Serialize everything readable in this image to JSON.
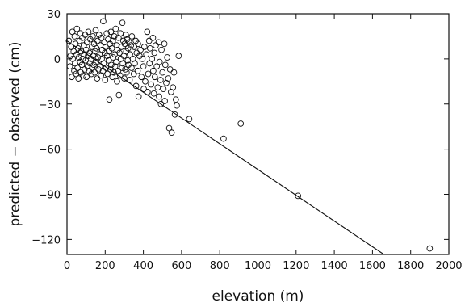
{
  "chart_data": {
    "type": "scatter",
    "title": "",
    "xlabel": "elevation (m)",
    "ylabel": "predicted − observed (cm)",
    "xlim": [
      0,
      2000
    ],
    "ylim": [
      -130,
      30
    ],
    "xticks": [
      0,
      200,
      400,
      600,
      800,
      1000,
      1200,
      1400,
      1600,
      1800,
      2000
    ],
    "yticks": [
      30,
      0,
      -30,
      -60,
      -90,
      -120
    ],
    "grid": false,
    "legend": "none",
    "series": [
      {
        "marker": "open-circle",
        "points": [
          [
            10,
            12
          ],
          [
            15,
            -5
          ],
          [
            18,
            2
          ],
          [
            22,
            8
          ],
          [
            25,
            -12
          ],
          [
            28,
            18
          ],
          [
            30,
            0
          ],
          [
            35,
            5
          ],
          [
            38,
            -8
          ],
          [
            40,
            15
          ],
          [
            42,
            -3
          ],
          [
            45,
            10
          ],
          [
            48,
            -10
          ],
          [
            50,
            3
          ],
          [
            52,
            20
          ],
          [
            55,
            -6
          ],
          [
            58,
            7
          ],
          [
            60,
            -13
          ],
          [
            62,
            1
          ],
          [
            65,
            12
          ],
          [
            68,
            -2
          ],
          [
            70,
            17
          ],
          [
            72,
            -9
          ],
          [
            75,
            5
          ],
          [
            78,
            -4
          ],
          [
            80,
            14
          ],
          [
            82,
            0
          ],
          [
            85,
            -11
          ],
          [
            88,
            9
          ],
          [
            90,
            3
          ],
          [
            92,
            -7
          ],
          [
            95,
            16
          ],
          [
            98,
            -1
          ],
          [
            100,
            6
          ],
          [
            102,
            -12
          ],
          [
            105,
            11
          ],
          [
            108,
            -5
          ],
          [
            110,
            2
          ],
          [
            112,
            18
          ],
          [
            115,
            -8
          ],
          [
            118,
            4
          ],
          [
            120,
            -3
          ],
          [
            122,
            13
          ],
          [
            125,
            0
          ],
          [
            128,
            -10
          ],
          [
            130,
            8
          ],
          [
            132,
            -6
          ],
          [
            135,
            15
          ],
          [
            138,
            2
          ],
          [
            140,
            -4
          ],
          [
            142,
            10
          ],
          [
            145,
            -9
          ],
          [
            148,
            5
          ],
          [
            150,
            19
          ],
          [
            152,
            -2
          ],
          [
            155,
            7
          ],
          [
            158,
            -13
          ],
          [
            160,
            12
          ],
          [
            162,
            1
          ],
          [
            165,
            -7
          ],
          [
            168,
            16
          ],
          [
            170,
            3
          ],
          [
            172,
            -5
          ],
          [
            175,
            9
          ],
          [
            178,
            -11
          ],
          [
            180,
            14
          ],
          [
            182,
            0
          ],
          [
            185,
            6
          ],
          [
            188,
            -8
          ],
          [
            190,
            25
          ],
          [
            192,
            -3
          ],
          [
            195,
            11
          ],
          [
            198,
            4
          ],
          [
            200,
            -14
          ],
          [
            202,
            8
          ],
          [
            205,
            -6
          ],
          [
            208,
            17
          ],
          [
            210,
            2
          ],
          [
            212,
            -10
          ],
          [
            215,
            13
          ],
          [
            218,
            -1
          ],
          [
            220,
            5
          ],
          [
            222,
            -27
          ],
          [
            225,
            10
          ],
          [
            228,
            -7
          ],
          [
            230,
            18
          ],
          [
            232,
            -4
          ],
          [
            235,
            7
          ],
          [
            238,
            -12
          ],
          [
            240,
            12
          ],
          [
            242,
            1
          ],
          [
            245,
            -9
          ],
          [
            248,
            15
          ],
          [
            250,
            3
          ],
          [
            252,
            -5
          ],
          [
            255,
            20
          ],
          [
            258,
            -2
          ],
          [
            260,
            9
          ],
          [
            262,
            -15
          ],
          [
            265,
            6
          ],
          [
            268,
            -8
          ],
          [
            270,
            14
          ],
          [
            272,
            -24
          ],
          [
            275,
            4
          ],
          [
            278,
            -11
          ],
          [
            280,
            17
          ],
          [
            282,
            0
          ],
          [
            285,
            8
          ],
          [
            288,
            -6
          ],
          [
            290,
            24
          ],
          [
            292,
            -3
          ],
          [
            295,
            12
          ],
          [
            298,
            2
          ],
          [
            300,
            -13
          ],
          [
            302,
            10
          ],
          [
            305,
            -7
          ],
          [
            308,
            16
          ],
          [
            310,
            5
          ],
          [
            312,
            -9
          ],
          [
            315,
            13
          ],
          [
            318,
            -1
          ],
          [
            320,
            7
          ],
          [
            322,
            -4
          ],
          [
            325,
            11
          ],
          [
            328,
            -14
          ],
          [
            330,
            3
          ],
          [
            335,
            9
          ],
          [
            338,
            -6
          ],
          [
            340,
            15
          ],
          [
            345,
            0
          ],
          [
            350,
            -10
          ],
          [
            352,
            8
          ],
          [
            355,
            -3
          ],
          [
            360,
            12
          ],
          [
            362,
            -18
          ],
          [
            365,
            4
          ],
          [
            370,
            -8
          ],
          [
            372,
            10
          ],
          [
            375,
            -25
          ],
          [
            380,
            2
          ],
          [
            385,
            6
          ],
          [
            390,
            -12
          ],
          [
            395,
            0
          ],
          [
            400,
            -5
          ],
          [
            402,
            -20
          ],
          [
            405,
            8
          ],
          [
            410,
            -15
          ],
          [
            415,
            3
          ],
          [
            420,
            18
          ],
          [
            422,
            -22
          ],
          [
            425,
            -10
          ],
          [
            430,
            12
          ],
          [
            432,
            -3
          ],
          [
            435,
            7
          ],
          [
            440,
            -17
          ],
          [
            445,
            0
          ],
          [
            450,
            14
          ],
          [
            452,
            -8
          ],
          [
            455,
            -23
          ],
          [
            458,
            4
          ],
          [
            460,
            -12
          ],
          [
            465,
            9
          ],
          [
            470,
            -5
          ],
          [
            475,
            -19
          ],
          [
            480,
            11
          ],
          [
            482,
            -25
          ],
          [
            485,
            -2
          ],
          [
            490,
            -14
          ],
          [
            492,
            -30
          ],
          [
            495,
            6
          ],
          [
            500,
            -9
          ],
          [
            505,
            -20
          ],
          [
            510,
            10
          ],
          [
            512,
            -28
          ],
          [
            515,
            -4
          ],
          [
            520,
            -16
          ],
          [
            525,
            1
          ],
          [
            530,
            -13
          ],
          [
            535,
            -46
          ],
          [
            540,
            -7
          ],
          [
            545,
            -22
          ],
          [
            548,
            -49
          ],
          [
            555,
            -19
          ],
          [
            560,
            -9
          ],
          [
            565,
            -37
          ],
          [
            570,
            -27
          ],
          [
            575,
            -31
          ],
          [
            585,
            2
          ],
          [
            640,
            -40
          ],
          [
            820,
            -53
          ],
          [
            910,
            -43
          ],
          [
            1210,
            -91
          ],
          [
            1900,
            -126
          ]
        ]
      }
    ],
    "fit_line": {
      "x": [
        0,
        1660
      ],
      "y": [
        12,
        -131
      ]
    }
  }
}
